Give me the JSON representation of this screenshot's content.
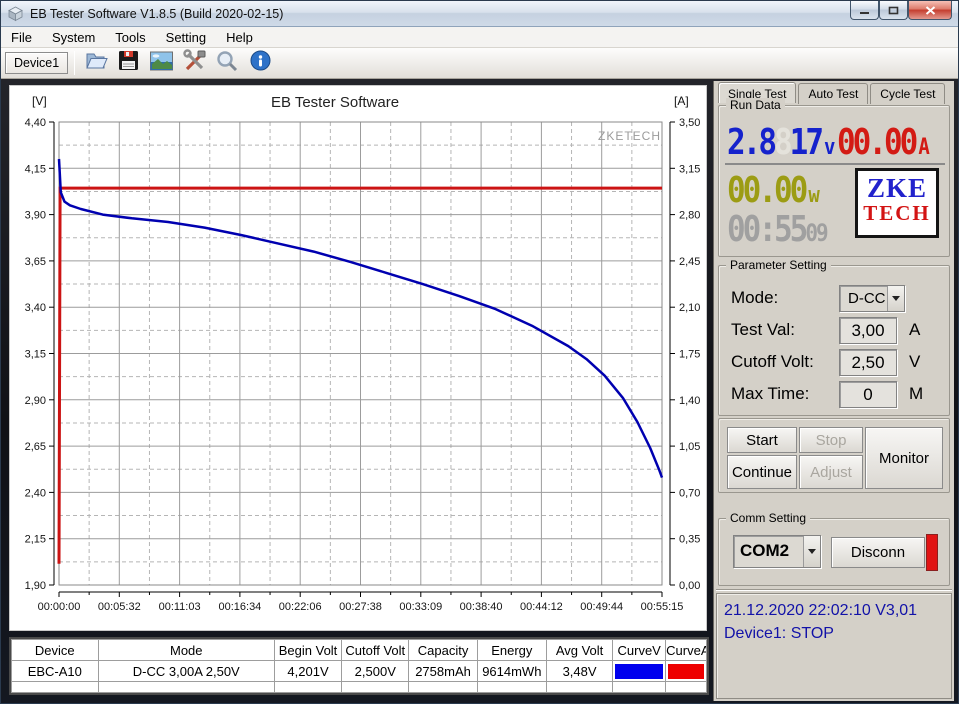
{
  "window": {
    "title": "EB Tester Software V1.8.5 (Build 2020-02-15)"
  },
  "menu": {
    "items": [
      "File",
      "System",
      "Tools",
      "Setting",
      "Help"
    ]
  },
  "toolbar": {
    "device_label": "Device1"
  },
  "tabs": {
    "single": "Single Test",
    "auto": "Auto Test",
    "cycle": "Cycle Test"
  },
  "run_data": {
    "title": "Run Data",
    "voltage": {
      "lead": "2.8",
      "ghost": "8",
      "tail": "17",
      "unit": "v"
    },
    "current": {
      "value": "00.00",
      "unit": "A"
    },
    "power": {
      "value": "00.00",
      "unit": "w"
    },
    "time": {
      "main": "00:55",
      "small": "09"
    },
    "colors": {
      "voltage": "#1522cc",
      "current": "#d31b14",
      "power": "#9c9c14",
      "time": "#a0a0a0"
    },
    "logo": {
      "top": "ZKE",
      "bottom": "TECH",
      "top_color": "#2222cc",
      "bottom_color": "#d31414"
    }
  },
  "parameters": {
    "title": "Parameter Setting",
    "mode": {
      "label": "Mode:",
      "value": "D-CC"
    },
    "test_val": {
      "label": "Test Val:",
      "value": "3,00",
      "unit": "A"
    },
    "cutoff": {
      "label": "Cutoff Volt:",
      "value": "2,50",
      "unit": "V"
    },
    "max_time": {
      "label": "Max Time:",
      "value": "0",
      "unit": "M"
    }
  },
  "buttons": {
    "start": "Start",
    "stop": "Stop",
    "monitor": "Monitor",
    "continue": "Continue",
    "adjust": "Adjust"
  },
  "comm": {
    "title": "Comm Setting",
    "port": "COM2",
    "disconnect": "Disconn"
  },
  "status": {
    "line1": "21.12.2020 22:02:10  V3,01",
    "line2": "Device1: STOP"
  },
  "table": {
    "headers": [
      "Device",
      "Mode",
      "Begin Volt",
      "Cutoff Volt",
      "Capacity",
      "Energy",
      "Avg Volt",
      "CurveV",
      "CurveA"
    ],
    "row": [
      "EBC-A10",
      "D-CC 3,00A 2,50V",
      "4,201V",
      "2,500V",
      "2758mAh",
      "9614mWh",
      "3,48V"
    ],
    "curve_v_color": "#0000ee",
    "curve_a_color": "#ee0000"
  },
  "chart_data": {
    "type": "line",
    "title": "EB Tester Software",
    "watermark": "ZKETECH",
    "left_axis_label": "[V]",
    "right_axis_label": "[A]",
    "v_ticks": [
      "4,40",
      "4,15",
      "3,90",
      "3,65",
      "3,40",
      "3,15",
      "2,90",
      "2,65",
      "2,40",
      "2,15",
      "1,90"
    ],
    "a_ticks": [
      "3,50",
      "3,15",
      "2,80",
      "2,45",
      "2,10",
      "1,75",
      "1,40",
      "1,05",
      "0,70",
      "0,35",
      "0,00"
    ],
    "x_ticks": [
      "00:00:00",
      "00:05:32",
      "00:11:03",
      "00:16:34",
      "00:22:06",
      "00:27:38",
      "00:33:09",
      "00:38:40",
      "00:44:12",
      "00:49:44",
      "00:55:15"
    ],
    "v_range": [
      1.9,
      4.4
    ],
    "a_range": [
      0.0,
      3.5
    ],
    "t_range": [
      0,
      3315
    ],
    "legend_position": "none",
    "grid": "on",
    "voltage_color": "#0000b0",
    "current_color": "#cc1414",
    "voltage_series": [
      [
        0,
        4.2
      ],
      [
        10,
        4.02
      ],
      [
        30,
        3.97
      ],
      [
        60,
        3.95
      ],
      [
        120,
        3.93
      ],
      [
        240,
        3.9
      ],
      [
        400,
        3.88
      ],
      [
        600,
        3.86
      ],
      [
        800,
        3.83
      ],
      [
        1000,
        3.79
      ],
      [
        1200,
        3.745
      ],
      [
        1400,
        3.7
      ],
      [
        1600,
        3.645
      ],
      [
        1800,
        3.585
      ],
      [
        2000,
        3.525
      ],
      [
        2200,
        3.46
      ],
      [
        2400,
        3.39
      ],
      [
        2600,
        3.3
      ],
      [
        2800,
        3.19
      ],
      [
        2900,
        3.12
      ],
      [
        3000,
        3.03
      ],
      [
        3100,
        2.91
      ],
      [
        3180,
        2.78
      ],
      [
        3250,
        2.64
      ],
      [
        3300,
        2.52
      ],
      [
        3315,
        2.48
      ]
    ],
    "current_series": [
      [
        0,
        0.16
      ],
      [
        6,
        3.0
      ],
      [
        3315,
        3.0
      ]
    ]
  }
}
